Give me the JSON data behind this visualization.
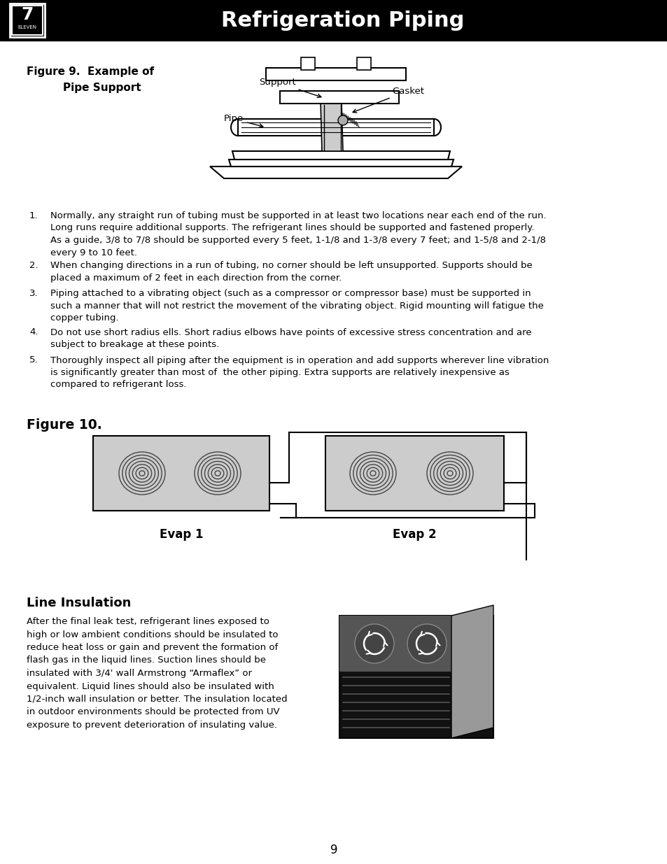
{
  "title": "Refrigeration Piping",
  "bg_color": "#ffffff",
  "header_bg": "#000000",
  "header_text_color": "#ffffff",
  "header_fontsize": 22,
  "fig9_title_line1": "Figure 9.  Example of",
  "fig9_title_line2": "Pipe Support",
  "fig10_title": "Figure 10.",
  "line_insulation_title": "Line Insulation",
  "bullet_items": [
    "Normally, any straight run of tubing must be supported in at least two locations near each end of the run.\nLong runs require additional supports. The refrigerant lines should be supported and fastened properly.\nAs a guide, 3/8 to 7/8 should be supported every 5 feet, 1-1/8 and 1-3/8 every 7 feet; and 1-5/8 and 2-1/8\nevery 9 to 10 feet.",
    "When changing directions in a run of tubing, no corner should be left unsupported. Supports should be\nplaced a maximum of 2 feet in each direction from the corner.",
    "Piping attached to a vibrating object (such as a compressor or compressor base) must be supported in\nsuch a manner that will not restrict the movement of the vibrating object. Rigid mounting will fatigue the\ncopper tubing.",
    "Do not use short radius ells. Short radius elbows have points of excessive stress concentration and are\nsubject to breakage at these points.",
    "Thoroughly inspect all piping after the equipment is in operation and add supports wherever line vibration\nis significantly greater than most of  the other piping. Extra supports are relatively inexpensive as\ncompared to refrigerant loss."
  ],
  "line_insulation_text": "After the final leak test, refrigerant lines exposed to\nhigh or low ambient conditions should be insulated to\nreduce heat loss or gain and prevent the formation of\nflash gas in the liquid lines. Suction lines should be\ninsulated with 3/4' wall Armstrong “Armaflex” or\nequivalent. Liquid lines should also be insulated with\n1/2-inch wall insulation or better. The insulation located\nin outdoor environments should be protected from UV\nexposure to prevent deterioration of insulating value.",
  "page_number": "9",
  "evap1_label": "Evap 1",
  "evap2_label": "Evap 2"
}
